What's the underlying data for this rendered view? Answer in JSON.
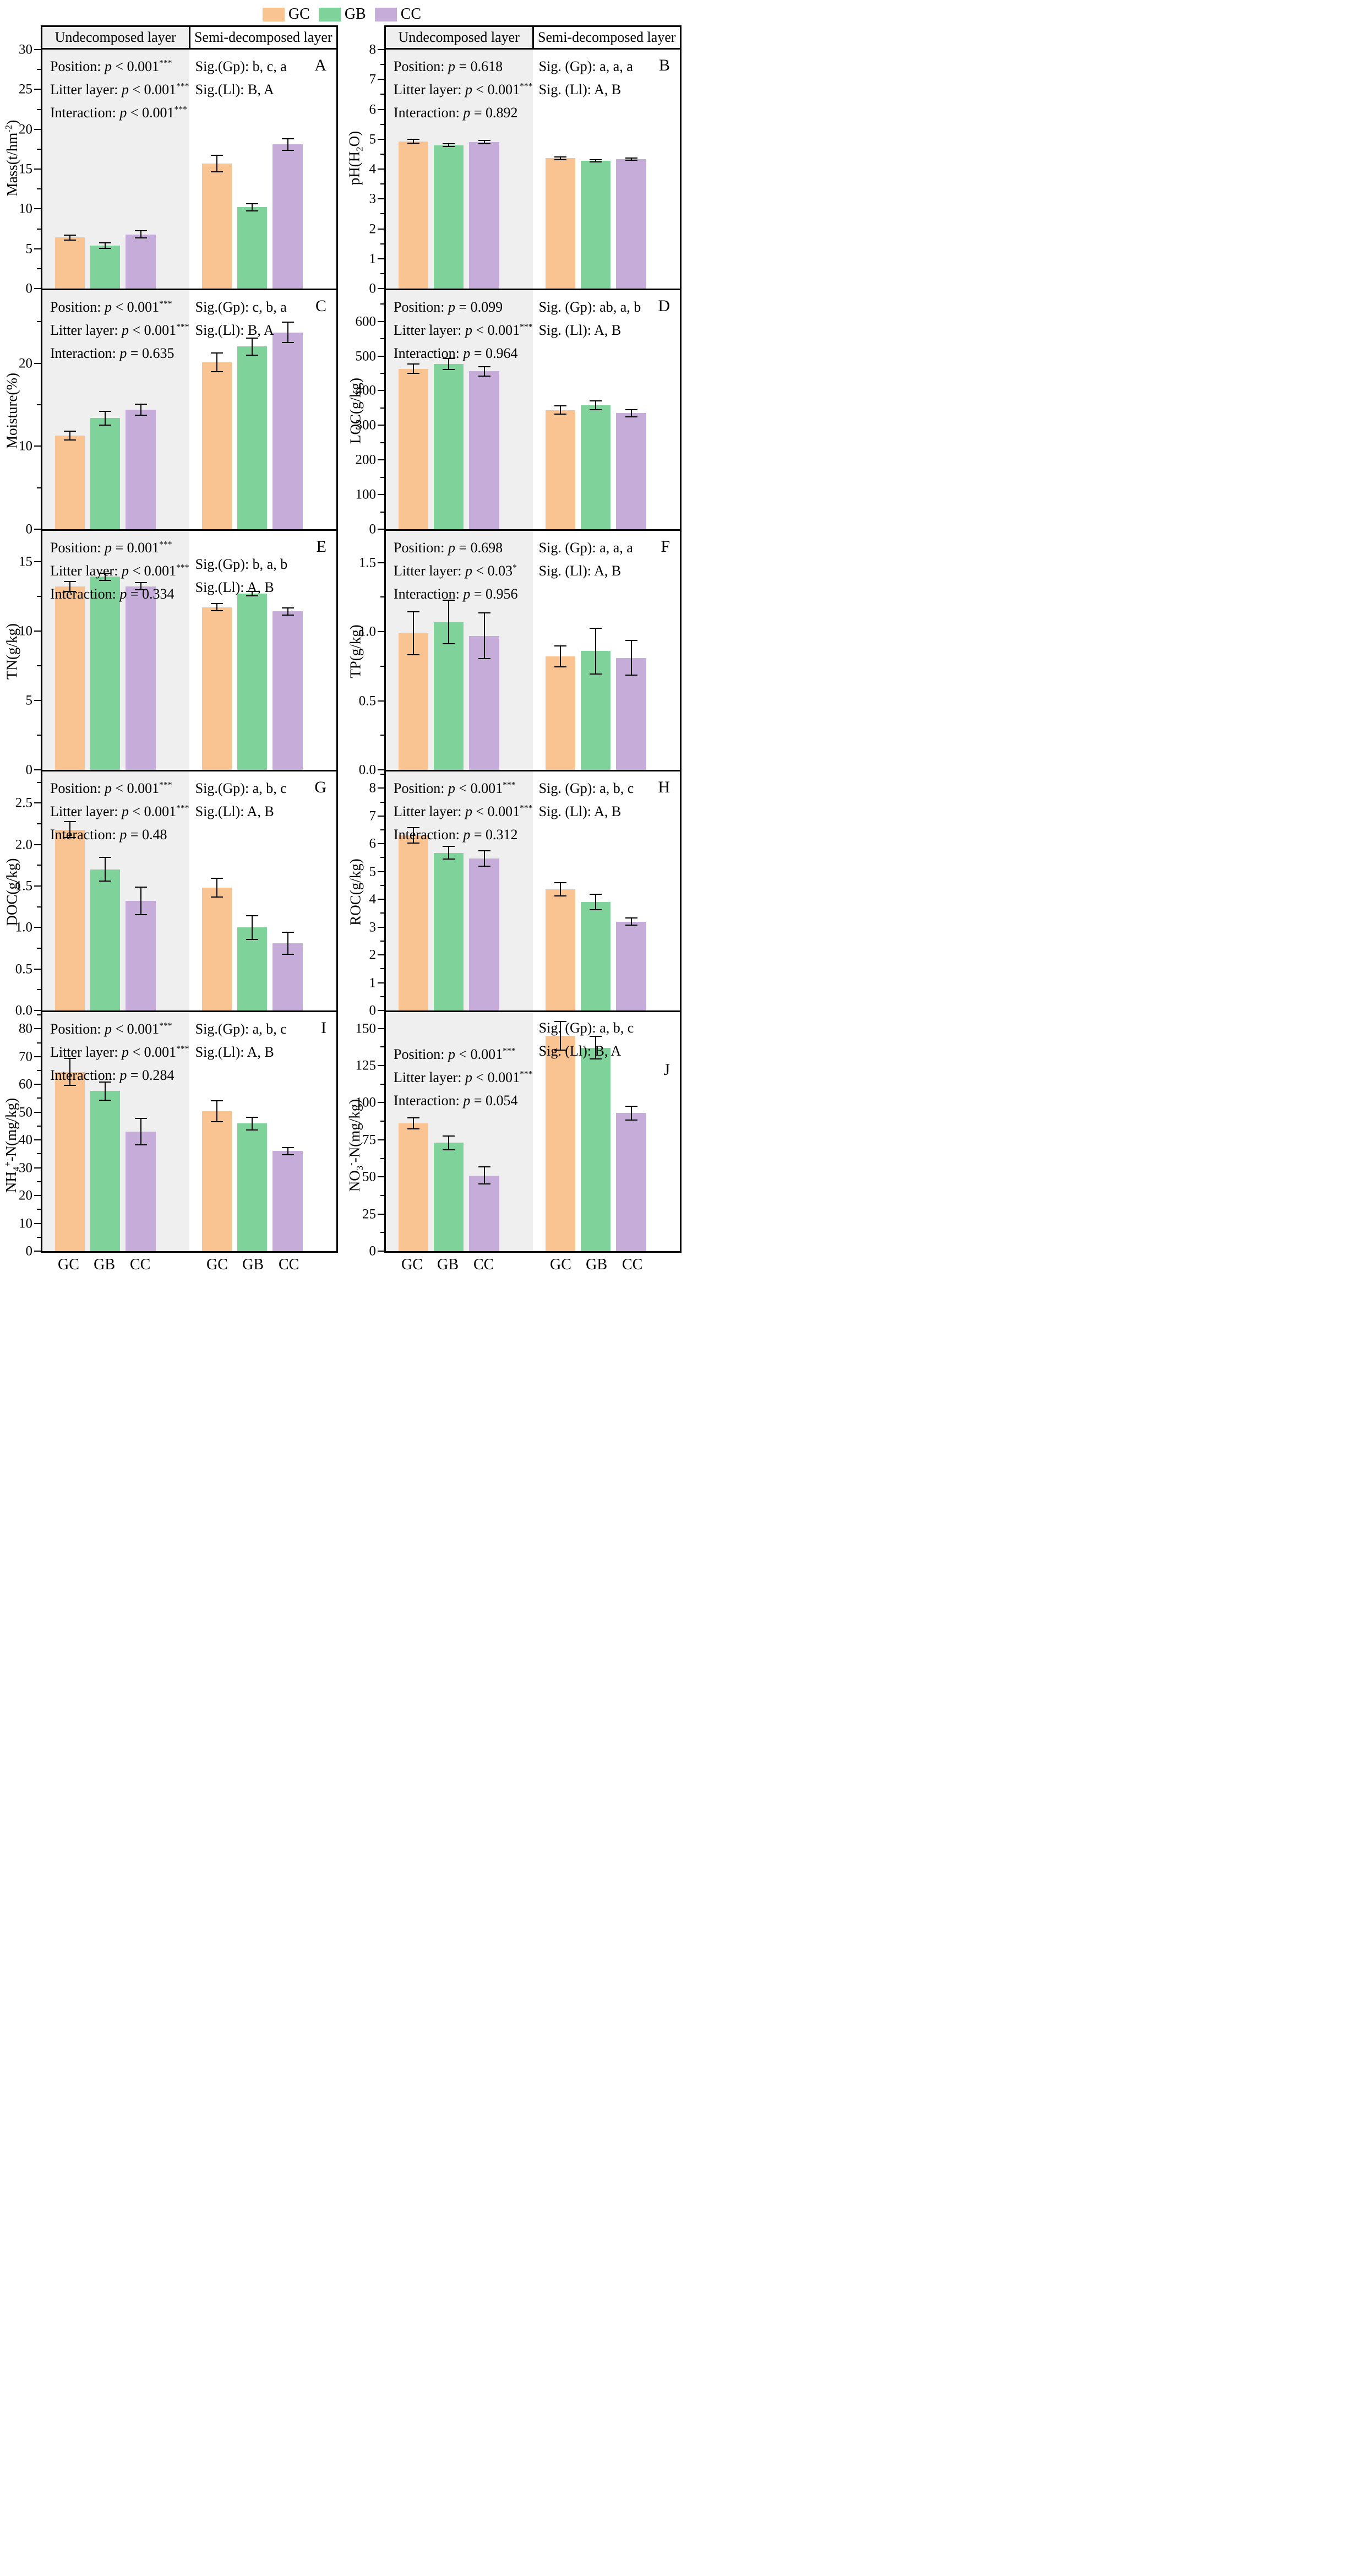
{
  "legend": {
    "items": [
      {
        "label": "GC",
        "color": "#FAC492"
      },
      {
        "label": "GB",
        "color": "#7FD39A"
      },
      {
        "label": "CC",
        "color": "#C6ADD9"
      }
    ]
  },
  "layer_headers": [
    "Undecomposed layer",
    "Semi-decomposed layer"
  ],
  "x_categories": [
    "GC",
    "GB",
    "CC"
  ],
  "colors": {
    "frame": "#000000",
    "undecomposed_bg": "#f0eff0",
    "semi_bg": "#ffffff"
  },
  "chart_data": {
    "type": "bar",
    "grid": "2 columns x 5 rows of panels; each panel split into Undecomposed (gray) and Semi-decomposed (white) halves with bars GC, GB, CC",
    "panels": [
      {
        "letter": "A",
        "ylabel_parts": [
          {
            "t": "Mass(t/hm"
          },
          {
            "sup": "-2"
          },
          {
            "t": ")"
          }
        ],
        "ylim": [
          0,
          30
        ],
        "ytick_labels": [
          "0",
          "5",
          "10",
          "15",
          "20",
          "25",
          "30"
        ],
        "minor_step": 2.5,
        "stats": [
          {
            "pre": "Position: ",
            "rel": "< 0.001",
            "stars": "***"
          },
          {
            "pre": "Litter layer: ",
            "rel": "< 0.001",
            "stars": "***"
          },
          {
            "pre": "Interaction: ",
            "rel": "< 0.001",
            "stars": "***"
          }
        ],
        "sig": [
          "Sig.(Gp): b, c, a",
          "Sig.(Ll): B, A"
        ],
        "undecomposed": {
          "values": [
            6.4,
            5.4,
            6.8
          ],
          "errors": [
            0.4,
            0.4,
            0.5
          ]
        },
        "semi_decomposed": {
          "values": [
            15.7,
            10.2,
            18.1
          ],
          "errors": [
            1.1,
            0.5,
            0.8
          ]
        }
      },
      {
        "letter": "B",
        "ylabel_parts": [
          {
            "t": "pH(H"
          },
          {
            "sub": "2"
          },
          {
            "t": "O)"
          }
        ],
        "ylim": [
          0,
          8
        ],
        "ytick_labels": [
          "0",
          "1",
          "2",
          "3",
          "4",
          "5",
          "6",
          "7",
          "8"
        ],
        "minor_step": 0.5,
        "stats": [
          {
            "pre": "Position: ",
            "rel": "= 0.618",
            "stars": ""
          },
          {
            "pre": "Litter layer: ",
            "rel": "< 0.001",
            "stars": "***"
          },
          {
            "pre": "Interaction: ",
            "rel": "= 0.892",
            "stars": ""
          }
        ],
        "sig": [
          "Sig. (Gp): a, a, a",
          "Sig. (Ll): A, B"
        ],
        "undecomposed": {
          "values": [
            4.93,
            4.8,
            4.9
          ],
          "errors": [
            0.08,
            0.06,
            0.07
          ]
        },
        "semi_decomposed": {
          "values": [
            4.36,
            4.28,
            4.33
          ],
          "errors": [
            0.06,
            0.05,
            0.06
          ]
        }
      },
      {
        "letter": "C",
        "ylabel_parts": [
          {
            "t": "Moisture(%)"
          }
        ],
        "ylim": [
          0,
          28.8
        ],
        "ytick_labels": [
          "0",
          "10",
          "20"
        ],
        "minor_step": 5,
        "stats": [
          {
            "pre": "Position: ",
            "rel": "< 0.001",
            "stars": "***"
          },
          {
            "pre": "Litter layer: ",
            "rel": "< 0.001",
            "stars": "***"
          },
          {
            "pre": "Interaction: ",
            "rel": "= 0.635",
            "stars": ""
          }
        ],
        "sig": [
          "Sig.(Gp): c, b, a",
          "Sig.(Ll): B, A"
        ],
        "undecomposed": {
          "values": [
            11.3,
            13.4,
            14.4
          ],
          "errors": [
            0.6,
            0.9,
            0.7
          ]
        },
        "semi_decomposed": {
          "values": [
            20.1,
            22.0,
            23.7
          ],
          "errors": [
            1.2,
            1.1,
            1.3
          ]
        }
      },
      {
        "letter": "D",
        "ylabel_parts": [
          {
            "t": "LOC(g/kg)"
          }
        ],
        "ylim": [
          0,
          690
        ],
        "ytick_labels": [
          "0",
          "100",
          "200",
          "300",
          "400",
          "500",
          "600"
        ],
        "minor_step": 50,
        "stats": [
          {
            "pre": "Position: ",
            "rel": "= 0.099",
            "stars": ""
          },
          {
            "pre": "Litter layer: ",
            "rel": "< 0.001",
            "stars": "***"
          },
          {
            "pre": "Interaction: ",
            "rel": "= 0.964",
            "stars": ""
          }
        ],
        "sig": [
          "Sig. (Gp): ab, a, b",
          "Sig. (Ll): A, B"
        ],
        "undecomposed": {
          "values": [
            463,
            477,
            456
          ],
          "errors": [
            15,
            18,
            15
          ]
        },
        "semi_decomposed": {
          "values": [
            344,
            358,
            335
          ],
          "errors": [
            13,
            14,
            12
          ]
        }
      },
      {
        "letter": "E",
        "ylabel_parts": [
          {
            "t": "TN(g/kg)"
          }
        ],
        "ylim": [
          0,
          17.2
        ],
        "ytick_labels": [
          "0",
          "5",
          "10",
          "15"
        ],
        "minor_step": 2.5,
        "stats": [
          {
            "pre": "Position: ",
            "rel": "= 0.001",
            "stars": "***"
          },
          {
            "pre": "Litter layer: ",
            "rel": "< 0.001",
            "stars": "***"
          },
          {
            "pre": "Interaction: ",
            "rel": "= 0.334",
            "stars": ""
          }
        ],
        "sig": [
          "Sig.(Gp): b, a, b",
          "Sig.(Ll): A, B"
        ],
        "undecomposed": {
          "values": [
            13.2,
            13.9,
            13.2
          ],
          "errors": [
            0.4,
            0.3,
            0.3
          ]
        },
        "semi_decomposed": {
          "values": [
            11.7,
            12.7,
            11.4
          ],
          "errors": [
            0.3,
            0.2,
            0.3
          ]
        }
      },
      {
        "letter": "F",
        "ylabel_parts": [
          {
            "t": "TP(g/kg)"
          }
        ],
        "ylim": [
          0,
          1.73
        ],
        "ytick_labels": [
          "0.0",
          "0.5",
          "1.0",
          "1.5"
        ],
        "minor_step": 0.25,
        "stats": [
          {
            "pre": "Position: ",
            "rel": "= 0.698",
            "stars": ""
          },
          {
            "pre": "Litter layer: ",
            "rel": "< 0.03",
            "stars": "*"
          },
          {
            "pre": "Interaction: ",
            "rel": "= 0.956",
            "stars": ""
          }
        ],
        "sig": [
          "Sig. (Gp): a, a, a",
          "Sig. (Ll): A, B"
        ],
        "undecomposed": {
          "values": [
            0.99,
            1.07,
            0.97
          ],
          "errors": [
            0.16,
            0.16,
            0.17
          ]
        },
        "semi_decomposed": {
          "values": [
            0.82,
            0.86,
            0.81
          ],
          "errors": [
            0.08,
            0.17,
            0.13
          ]
        }
      },
      {
        "letter": "G",
        "ylabel_parts": [
          {
            "t": "DOC(g/kg)"
          }
        ],
        "ylim": [
          0,
          2.88
        ],
        "ytick_labels": [
          "0.0",
          "0.5",
          "1.0",
          "1.5",
          "2.0",
          "2.5"
        ],
        "minor_step": 0.25,
        "stats": [
          {
            "pre": "Position: ",
            "rel": "< 0.001",
            "stars": "***"
          },
          {
            "pre": "Litter layer: ",
            "rel": "< 0.001",
            "stars": "***"
          },
          {
            "pre": "Interaction: ",
            "rel": "= 0.48",
            "stars": ""
          }
        ],
        "sig": [
          "Sig.(Gp): a, b, c",
          "Sig.(Ll): A, B"
        ],
        "undecomposed": {
          "values": [
            2.18,
            1.7,
            1.32
          ],
          "errors": [
            0.1,
            0.15,
            0.17
          ]
        },
        "semi_decomposed": {
          "values": [
            1.48,
            1.0,
            0.81
          ],
          "errors": [
            0.12,
            0.15,
            0.14
          ]
        }
      },
      {
        "letter": "H",
        "ylabel_parts": [
          {
            "t": "ROC(g/kg)"
          }
        ],
        "ylim": [
          0,
          8.6
        ],
        "ytick_labels": [
          "0",
          "1",
          "2",
          "3",
          "4",
          "5",
          "6",
          "7",
          "8"
        ],
        "minor_step": 0.5,
        "stats": [
          {
            "pre": "Position: ",
            "rel": "< 0.001",
            "stars": "***"
          },
          {
            "pre": "Litter layer: ",
            "rel": "< 0.001",
            "stars": "***"
          },
          {
            "pre": "Interaction: ",
            "rel": "= 0.312",
            "stars": ""
          }
        ],
        "sig": [
          "Sig. (Gp): a, b, c",
          "Sig. (Ll): A, B"
        ],
        "undecomposed": {
          "values": [
            6.3,
            5.67,
            5.47
          ],
          "errors": [
            0.3,
            0.25,
            0.3
          ]
        },
        "semi_decomposed": {
          "values": [
            4.36,
            3.9,
            3.2
          ],
          "errors": [
            0.25,
            0.3,
            0.15
          ]
        }
      },
      {
        "letter": "I",
        "ylabel_parts": [
          {
            "t": "NH"
          },
          {
            "sub": "4"
          },
          {
            "sup": "+"
          },
          {
            "t": "-N(mg/kg)"
          }
        ],
        "ylim": [
          0,
          86
        ],
        "ytick_labels": [
          "0",
          "10",
          "20",
          "30",
          "40",
          "50",
          "60",
          "70",
          "80"
        ],
        "minor_step": 5,
        "stats": [
          {
            "pre": "Position: ",
            "rel": "< 0.001",
            "stars": "***"
          },
          {
            "pre": "Litter layer: ",
            "rel": "< 0.001",
            "stars": "***"
          },
          {
            "pre": "Interaction: ",
            "rel": "= 0.284",
            "stars": ""
          }
        ],
        "sig": [
          "Sig.(Gp): a, b, c",
          "Sig.(Ll): A, B"
        ],
        "undecomposed": {
          "values": [
            64.5,
            57.6,
            43.0
          ],
          "errors": [
            5,
            3.5,
            5
          ]
        },
        "semi_decomposed": {
          "values": [
            50.3,
            45.9,
            36.0
          ],
          "errors": [
            4,
            2.5,
            1.5
          ]
        }
      },
      {
        "letter": "J",
        "ylabel_parts": [
          {
            "t": "NO"
          },
          {
            "sub": "3"
          },
          {
            "sup": "-"
          },
          {
            "t": "-N(mg/kg)"
          }
        ],
        "ylim": [
          0,
          161
        ],
        "ytick_labels": [
          "0",
          "25",
          "50",
          "75",
          "100",
          "125",
          "150"
        ],
        "minor_step": 12.5,
        "stats": [
          {
            "pre": "Position: ",
            "rel": "< 0.001",
            "stars": "***"
          },
          {
            "pre": "Litter layer: ",
            "rel": "< 0.001",
            "stars": "***"
          },
          {
            "pre": "Interaction: ",
            "rel": "= 0.054",
            "stars": ""
          }
        ],
        "sig": [
          "Sig. (Gp): a, b, c",
          "Sig. (Ll): B, A"
        ],
        "undecomposed": {
          "values": [
            86,
            73,
            51
          ],
          "errors": [
            4,
            5,
            6
          ]
        },
        "semi_decomposed": {
          "values": [
            145,
            137,
            93
          ],
          "errors": [
            10,
            8,
            5
          ]
        }
      }
    ]
  }
}
